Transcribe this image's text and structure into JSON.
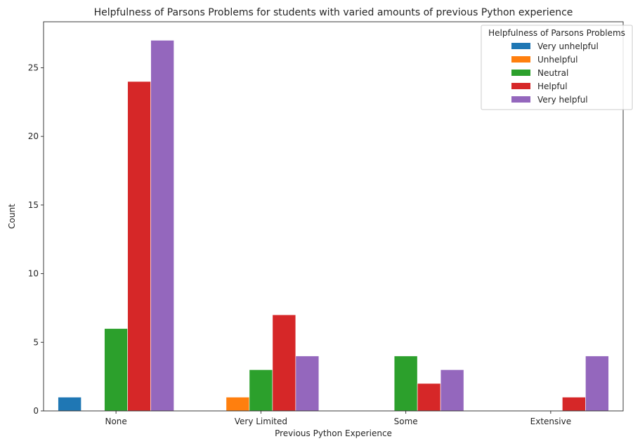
{
  "chart_data": {
    "type": "bar",
    "title": "Helpfulness of Parsons Problems for students with varied amounts of previous Python experience",
    "xlabel": "Previous Python Experience",
    "ylabel": "Count",
    "categories": [
      "None",
      "Very Limited",
      "Some",
      "Extensive"
    ],
    "ylim": [
      0,
      28.35
    ],
    "yticks": [
      0,
      5,
      10,
      15,
      20,
      25
    ],
    "grid": false,
    "legend": {
      "title": "Helpfulness of Parsons Problems",
      "placement": "top-right"
    },
    "series": [
      {
        "name": "Very unhelpful",
        "color": "#1f77b4",
        "values": [
          1,
          0,
          0,
          0
        ]
      },
      {
        "name": "Unhelpful",
        "color": "#ff7f0e",
        "values": [
          0,
          1,
          0,
          0
        ]
      },
      {
        "name": "Neutral",
        "color": "#2ca02c",
        "values": [
          6,
          3,
          4,
          0
        ]
      },
      {
        "name": "Helpful",
        "color": "#d62728",
        "values": [
          24,
          7,
          2,
          1
        ]
      },
      {
        "name": "Very helpful",
        "color": "#9467bd",
        "values": [
          27,
          4,
          3,
          4
        ]
      }
    ]
  }
}
